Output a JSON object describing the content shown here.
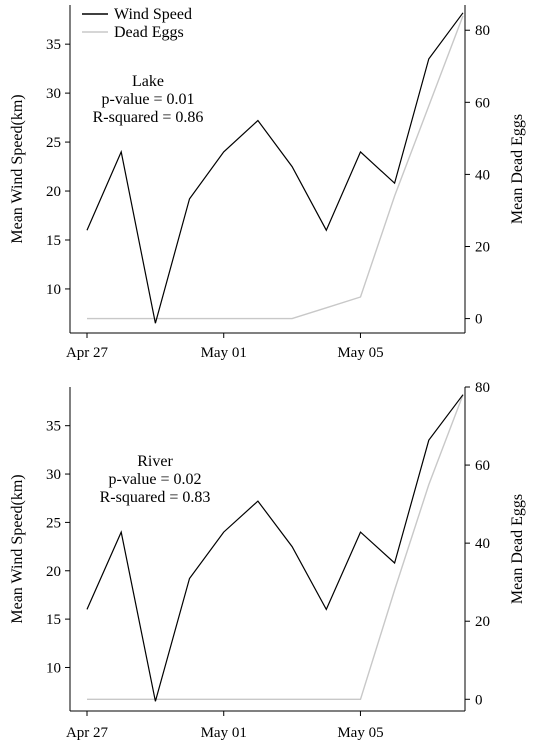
{
  "chart_data": [
    {
      "type": "line",
      "annotation": [
        "Lake",
        "p-value = 0.01",
        "R-squared = 0.86"
      ],
      "xlabel": "",
      "ylabel": "Mean Wind Speed(km)",
      "y2label": "Mean Dead Eggs",
      "x_ticks": [
        "Apr 27",
        "May 01",
        "May 05"
      ],
      "x": [
        "Apr 27",
        "Apr 28",
        "Apr 29",
        "Apr 30",
        "May 01",
        "May 02",
        "May 03",
        "May 04",
        "May 05",
        "May 06",
        "May 07",
        "May 08"
      ],
      "ylim": [
        5.5,
        39
      ],
      "yticks": [
        10,
        15,
        20,
        25,
        30,
        35
      ],
      "y2lim": [
        -4,
        87
      ],
      "y2ticks": [
        0,
        20,
        40,
        60,
        80
      ],
      "legend": "top-left",
      "series": [
        {
          "name": "Wind Speed",
          "axis": "left",
          "color": "#000000",
          "values": [
            16,
            24,
            6.5,
            19.2,
            24,
            27.2,
            22.5,
            16,
            24,
            20.8,
            33.5,
            38.2
          ]
        },
        {
          "name": "Dead Eggs",
          "axis": "right",
          "color": "#c8c8c8",
          "values": [
            0,
            0,
            0,
            0,
            0,
            0,
            0,
            3,
            6,
            34,
            59,
            84
          ]
        }
      ]
    },
    {
      "type": "line",
      "annotation": [
        "River",
        "p-value = 0.02",
        "R-squared = 0.83"
      ],
      "xlabel": "",
      "ylabel": "Mean Wind Speed(km)",
      "y2label": "Mean Dead Eggs",
      "x_ticks": [
        "Apr 27",
        "May 01",
        "May 05"
      ],
      "x": [
        "Apr 27",
        "Apr 28",
        "Apr 29",
        "Apr 30",
        "May 01",
        "May 02",
        "May 03",
        "May 04",
        "May 05",
        "May 06",
        "May 07",
        "May 08"
      ],
      "ylim": [
        5.5,
        39
      ],
      "yticks": [
        10,
        15,
        20,
        25,
        30,
        35
      ],
      "y2lim": [
        -3,
        80
      ],
      "y2ticks": [
        0,
        20,
        40,
        60,
        80
      ],
      "series": [
        {
          "name": "Wind Speed",
          "axis": "left",
          "color": "#000000",
          "values": [
            16,
            24,
            6.5,
            19.2,
            24,
            27.2,
            22.5,
            16,
            24,
            20.8,
            33.5,
            38.2
          ]
        },
        {
          "name": "Dead Eggs",
          "axis": "right",
          "color": "#c8c8c8",
          "values": [
            0,
            0,
            0,
            0,
            0,
            0,
            0,
            0,
            0,
            28,
            55,
            78
          ]
        }
      ]
    }
  ]
}
